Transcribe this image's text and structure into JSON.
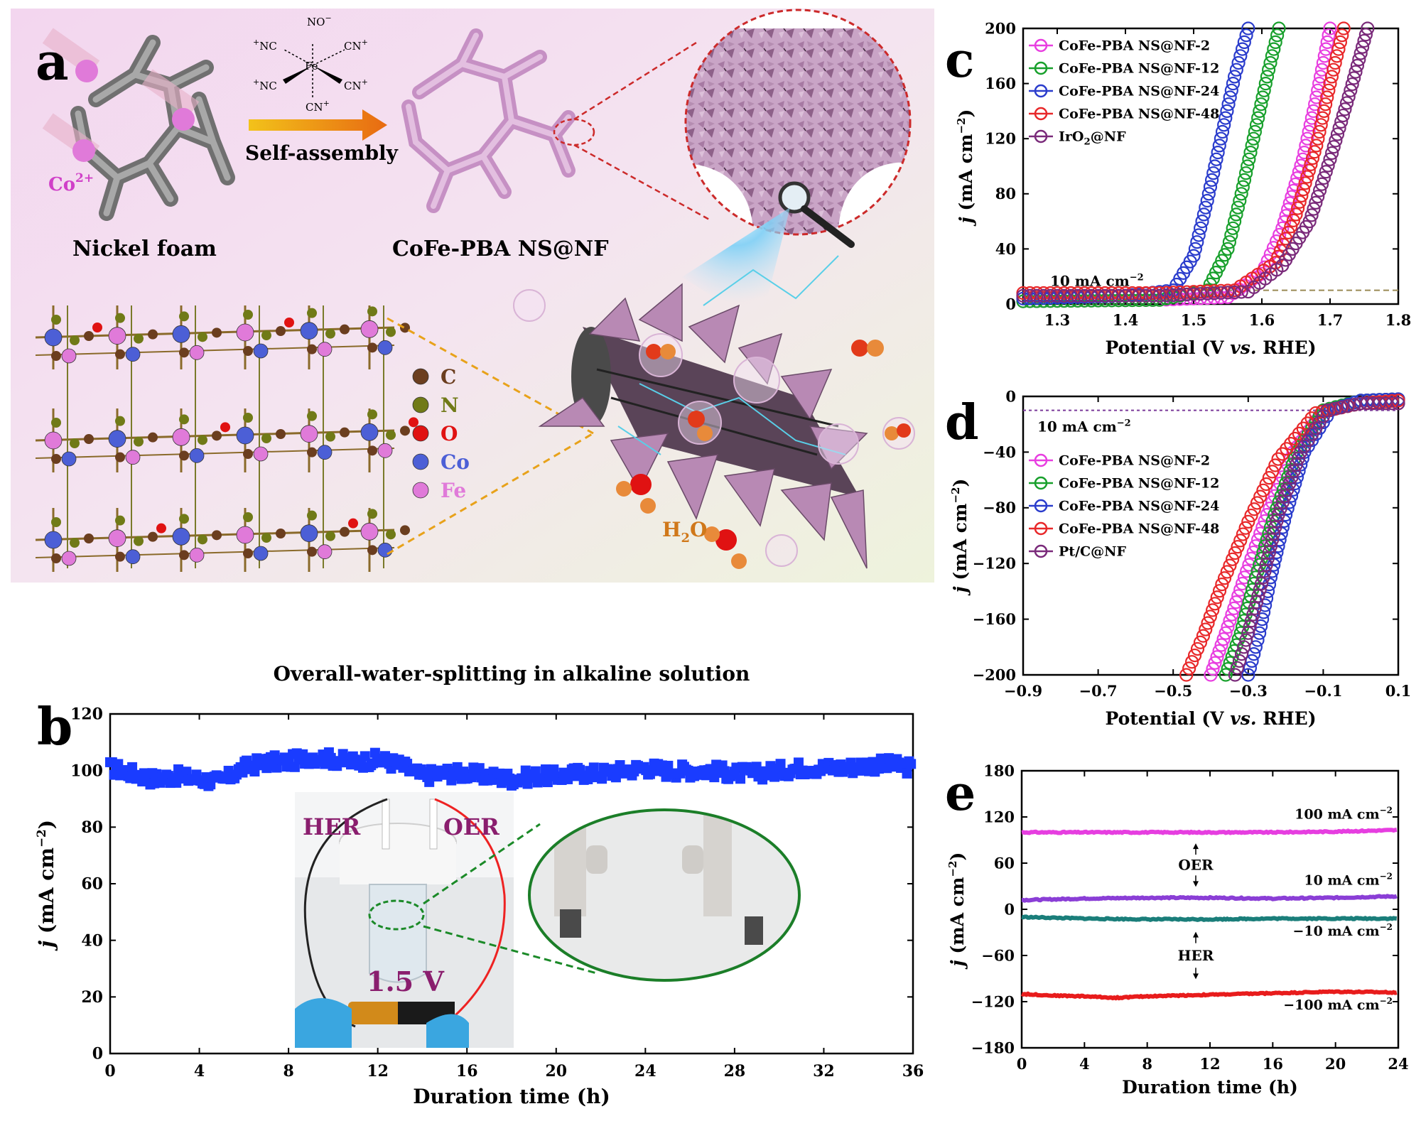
{
  "panels": {
    "a": {
      "label": "a",
      "nickel_foam_label": "Nickel foam",
      "product_label": "CoFe-PBA NS@NF",
      "arrow_label": "Self-assembly",
      "ion_label": "Co",
      "ion_charge": "2+",
      "ligand": {
        "center": "Fe",
        "top": "NO",
        "top_charge": "−",
        "upper_left": "NC",
        "upper_right": "CN",
        "lower_left": "NC",
        "lower_right": "CN",
        "bottom": "CN",
        "charge": "+"
      },
      "legend": [
        {
          "symbol": "C",
          "color": "#6b3e1f"
        },
        {
          "symbol": "N",
          "color": "#707a17"
        },
        {
          "symbol": "O",
          "color": "#e01212"
        },
        {
          "symbol": "Co",
          "color": "#4c5fd6"
        },
        {
          "symbol": "Fe",
          "color": "#e07ad9"
        }
      ],
      "h2o_main": "H",
      "h2o_sub": "2",
      "h2o_end": "O"
    },
    "b": {
      "label": "b",
      "caption": "Overall-water-splitting in alkaline solution",
      "inset_her": "HER",
      "inset_oer": "OER",
      "inset_voltage": "1.5 V"
    },
    "c": {
      "label": "c",
      "threshold_label": "10 mA cm",
      "threshold_sup": "−2"
    },
    "d": {
      "label": "d",
      "threshold_label": "10 mA cm",
      "threshold_sup": "−2"
    },
    "e": {
      "label": "e",
      "annotations": [
        {
          "text": "100 mA cm",
          "sup": "−2"
        },
        {
          "text": "10 mA cm",
          "sup": "−2"
        },
        {
          "text": "−10 mA cm",
          "sup": "−2"
        },
        {
          "text": "−100 mA cm",
          "sup": "−2"
        }
      ],
      "oer_label": "OER",
      "her_label": "HER"
    }
  },
  "chart_data": [
    {
      "panel": "b",
      "type": "scatter",
      "xlabel": "Duration time (h)",
      "ylabel_main": "j",
      "ylabel_rest": " (mA cm",
      "ylabel_sup": "−2",
      "ylabel_end": ")",
      "xlim": [
        0,
        36
      ],
      "ylim": [
        0,
        120
      ],
      "xticks": [
        0,
        4,
        8,
        12,
        16,
        20,
        24,
        28,
        32,
        36
      ],
      "yticks": [
        0,
        20,
        40,
        60,
        80,
        100,
        120
      ],
      "series": [
        {
          "color": "#1a3cff",
          "x": [
            0,
            1,
            2,
            3,
            4,
            5,
            6,
            7,
            8,
            9,
            10,
            11,
            12,
            13,
            14,
            15,
            16,
            17,
            18,
            19,
            20,
            21,
            22,
            23,
            24,
            25,
            26,
            27,
            28,
            29,
            30,
            31,
            32,
            33,
            34,
            35,
            36
          ],
          "y": [
            101,
            99,
            97,
            98,
            97,
            96,
            101,
            103,
            103,
            105,
            104,
            103,
            104,
            102,
            98,
            99,
            99,
            98,
            97,
            98,
            98,
            99,
            99,
            100,
            101,
            100,
            100,
            100,
            99,
            99,
            100,
            101,
            101,
            101,
            102,
            102,
            101
          ]
        }
      ]
    },
    {
      "panel": "c",
      "type": "scatter",
      "xlabel_main": "Potential (V ",
      "xlabel_ital": "vs.",
      "xlabel_end": " RHE)",
      "ylabel_main": "j",
      "ylabel_rest": " (mA cm",
      "ylabel_sup": "−2",
      "ylabel_end": ")",
      "xlim": [
        1.25,
        1.8
      ],
      "ylim": [
        0,
        200
      ],
      "xticks": [
        1.3,
        1.4,
        1.5,
        1.6,
        1.7,
        1.8
      ],
      "yticks": [
        0,
        40,
        80,
        120,
        160,
        200
      ],
      "threshold": 10,
      "legend_placement": "top-left",
      "series": [
        {
          "name": "CoFe-PBA NS@NF-2",
          "color": "#e83ee0",
          "x": [
            1.25,
            1.45,
            1.55,
            1.6,
            1.63,
            1.66,
            1.68,
            1.7
          ],
          "y": [
            2,
            3,
            5,
            22,
            55,
            105,
            150,
            200
          ]
        },
        {
          "name": "CoFe-PBA NS@NF-12",
          "color": "#18a02c",
          "x": [
            1.25,
            1.45,
            1.52,
            1.55,
            1.57,
            1.59,
            1.61,
            1.625
          ],
          "y": [
            2,
            3,
            10,
            40,
            80,
            125,
            170,
            200
          ]
        },
        {
          "name": "CoFe-PBA NS@NF-24",
          "color": "#2a3ccc",
          "x": [
            1.25,
            1.4,
            1.47,
            1.5,
            1.52,
            1.54,
            1.56,
            1.58
          ],
          "y": [
            4,
            6,
            10,
            35,
            75,
            120,
            165,
            200
          ]
        },
        {
          "name": "CoFe-PBA NS@NF-48",
          "color": "#e8282a",
          "x": [
            1.25,
            1.45,
            1.56,
            1.62,
            1.65,
            1.68,
            1.7,
            1.72
          ],
          "y": [
            8,
            8,
            10,
            30,
            65,
            115,
            160,
            200
          ]
        },
        {
          "name": "IrO2@NF",
          "name_main": "IrO",
          "name_sub": "2",
          "name_end": "@NF",
          "color": "#7a2a7a",
          "x": [
            1.25,
            1.45,
            1.58,
            1.63,
            1.67,
            1.7,
            1.73,
            1.755
          ],
          "y": [
            6,
            6,
            9,
            28,
            60,
            105,
            155,
            200
          ]
        }
      ]
    },
    {
      "panel": "d",
      "type": "scatter",
      "xlabel_main": "Potential (V ",
      "xlabel_ital": "vs.",
      "xlabel_end": " RHE)",
      "ylabel_main": "j",
      "ylabel_rest": " (mA cm",
      "ylabel_sup": "−2",
      "ylabel_end": ")",
      "xlim": [
        -0.9,
        0.1
      ],
      "ylim": [
        -200,
        0
      ],
      "xticks": [
        -0.9,
        -0.7,
        -0.5,
        -0.3,
        -0.1,
        0.1
      ],
      "yticks": [
        -200,
        -160,
        -120,
        -80,
        -40,
        0
      ],
      "threshold": -10,
      "legend_placement": "left",
      "series": [
        {
          "name": "CoFe-PBA NS@NF-2",
          "color": "#e83ee0",
          "x": [
            0.1,
            0.0,
            -0.1,
            -0.18,
            -0.25,
            -0.31,
            -0.36,
            -0.4
          ],
          "y": [
            -2,
            -3,
            -10,
            -40,
            -85,
            -130,
            -170,
            -200
          ]
        },
        {
          "name": "CoFe-PBA NS@NF-12",
          "color": "#18a02c",
          "x": [
            0.1,
            0.0,
            -0.1,
            -0.17,
            -0.23,
            -0.28,
            -0.32,
            -0.36
          ],
          "y": [
            -2,
            -3,
            -10,
            -40,
            -85,
            -130,
            -170,
            -200
          ]
        },
        {
          "name": "CoFe-PBA NS@NF-24",
          "color": "#2a3ccc",
          "x": [
            0.1,
            0.0,
            -0.08,
            -0.15,
            -0.2,
            -0.24,
            -0.27,
            -0.3
          ],
          "y": [
            -2,
            -3,
            -10,
            -40,
            -85,
            -130,
            -170,
            -200
          ]
        },
        {
          "name": "CoFe-PBA NS@NF-48",
          "color": "#e8282a",
          "x": [
            0.1,
            0.0,
            -0.12,
            -0.22,
            -0.3,
            -0.37,
            -0.42,
            -0.465
          ],
          "y": [
            -3,
            -5,
            -12,
            -45,
            -90,
            -135,
            -172,
            -200
          ]
        },
        {
          "name": "Pt/C@NF",
          "color": "#7a2a7a",
          "x": [
            0.1,
            0.0,
            -0.09,
            -0.16,
            -0.22,
            -0.26,
            -0.3,
            -0.335
          ],
          "y": [
            -5,
            -5,
            -10,
            -40,
            -85,
            -130,
            -170,
            -200
          ]
        }
      ]
    },
    {
      "panel": "e",
      "type": "line",
      "xlabel": "Duration time (h)",
      "ylabel_main": "j",
      "ylabel_rest": " (mA cm",
      "ylabel_sup": "−2",
      "ylabel_end": ")",
      "xlim": [
        0,
        24
      ],
      "ylim": [
        -180,
        180
      ],
      "xticks": [
        0,
        4,
        8,
        12,
        16,
        20,
        24
      ],
      "yticks": [
        -180,
        -120,
        -60,
        0,
        60,
        120,
        180
      ],
      "series": [
        {
          "color": "#e63ee0",
          "x": [
            0,
            4,
            8,
            12,
            16,
            20,
            24
          ],
          "y": [
            100,
            100,
            100,
            100,
            100,
            101,
            103
          ]
        },
        {
          "color": "#8a3ed6",
          "x": [
            0,
            4,
            8,
            12,
            16,
            20,
            24
          ],
          "y": [
            12,
            14,
            15,
            15,
            14,
            15,
            17
          ]
        },
        {
          "color": "#1a7e7a",
          "x": [
            0,
            4,
            8,
            12,
            16,
            20,
            24
          ],
          "y": [
            -10,
            -12,
            -13,
            -13,
            -12,
            -12,
            -12
          ]
        },
        {
          "color": "#e81c1c",
          "x": [
            0,
            2,
            4,
            6,
            8,
            12,
            16,
            20,
            24
          ],
          "y": [
            -110,
            -112,
            -113,
            -115,
            -113,
            -111,
            -109,
            -107,
            -108
          ]
        }
      ]
    }
  ]
}
